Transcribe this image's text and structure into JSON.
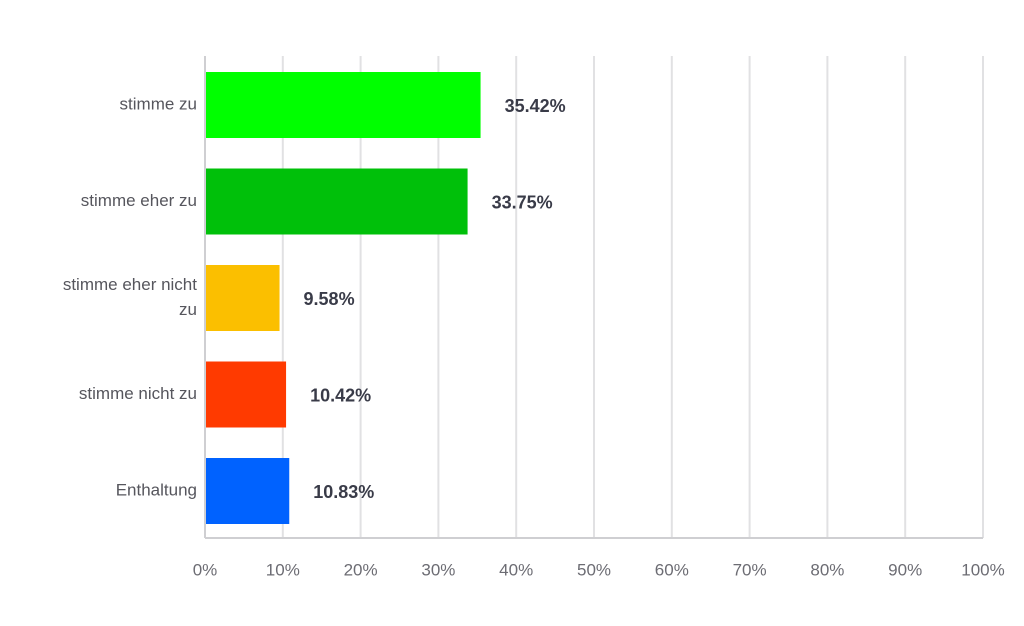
{
  "chart_data": {
    "type": "bar",
    "orientation": "horizontal",
    "categories": [
      "stimme zu",
      "stimme eher zu",
      "stimme eher nicht zu",
      "stimme nicht zu",
      "Enthaltung"
    ],
    "values": [
      35.42,
      33.75,
      9.58,
      10.42,
      10.83
    ],
    "value_labels": [
      "35.42%",
      "33.75%",
      "9.58%",
      "10.42%",
      "10.83%"
    ],
    "colors": [
      "#00ff00",
      "#00c00a",
      "#fbbf00",
      "#ff3a00",
      "#0062ff"
    ],
    "x_ticks": [
      "0%",
      "10%",
      "20%",
      "30%",
      "40%",
      "50%",
      "60%",
      "70%",
      "80%",
      "90%",
      "100%"
    ],
    "xlim": [
      0,
      100
    ],
    "grid": true,
    "title": "",
    "xlabel": "",
    "ylabel": ""
  }
}
